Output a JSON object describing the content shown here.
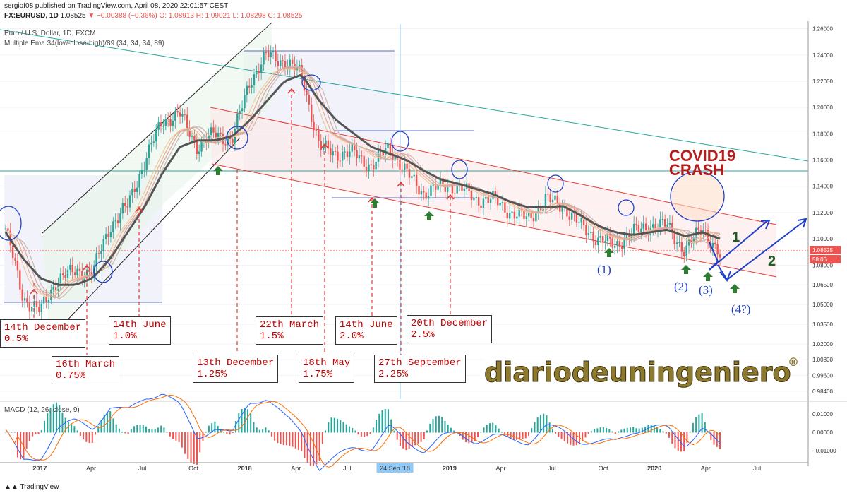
{
  "header": {
    "line1": "sergiof08 published on TradingView.com, April 08, 2020 22:01:57 CEST",
    "line2_symbol": "FX:EURUSD, 1D",
    "line2_last": "1.08525",
    "line2_change": "▼ −0.00388 (−0.36%)",
    "line2_ohlc": "O: 1.08913  H: 1.09021  L: 1.08298  C: 1.08525",
    "title": "Euro / U.S. Dollar, 1D, FXCM",
    "indicator": "Multiple Ema 34(low-close-high)/89 (34, 34, 34, 89)"
  },
  "price_axis": {
    "ticks": [
      "1.26000",
      "1.24000",
      "1.22000",
      "1.20000",
      "1.18000",
      "1.16000",
      "1.14000",
      "1.12000",
      "1.10000",
      "1.08000",
      "1.06500",
      "1.05000",
      "1.03500",
      "1.02000",
      "1.00800",
      "0.99600",
      "0.98400"
    ],
    "last_price": "1.08525",
    "countdown": "58:06"
  },
  "macd": {
    "label": "MACD (12, 26, close, 9)",
    "ticks": [
      "0.01000",
      "0.00000",
      "−0.01000"
    ]
  },
  "time_axis": {
    "labels": [
      "2017",
      "Apr",
      "Jul",
      "Oct",
      "2018",
      "Apr",
      "Jul",
      "24 Sep '18",
      "2019",
      "Apr",
      "Jul",
      "Oct",
      "2020",
      "Apr",
      "Jul"
    ]
  },
  "annotations": {
    "rate_boxes": [
      {
        "date": "14th December",
        "rate": "0.5%"
      },
      {
        "date": "16th March",
        "rate": "0.75%"
      },
      {
        "date": "14th June",
        "rate": "1.0%"
      },
      {
        "date": "13th December",
        "rate": "1.25%"
      },
      {
        "date": "22th March",
        "rate": "1.5%"
      },
      {
        "date": "18th May",
        "rate": "1.75%"
      },
      {
        "date": "14th June",
        "rate": "2.0%"
      },
      {
        "date": "27th September",
        "rate": "2.25%"
      },
      {
        "date": "20th December",
        "rate": "2.5%"
      }
    ],
    "covid_line1": "COVID19",
    "covid_line2": "CRASH",
    "wave_labels": [
      "(1)",
      "(2)",
      "(3)",
      "(4?)"
    ],
    "scenario_labels": [
      "1",
      "2"
    ],
    "watermark": "diariodeuningeniero",
    "watermark_mark": "®"
  },
  "colors": {
    "price_up": "#26a69a",
    "price_down": "#ef5350",
    "ema_slow": "#555555",
    "channel": "#e53935",
    "covid_text": "#b71c1c",
    "arrows": "#1e40c8",
    "green_arrows": "#2e7d32",
    "macd_line": "#2962ff",
    "signal_line": "#ff6d00"
  },
  "footer": {
    "brand": "TradingView"
  },
  "chart_data": {
    "type": "line",
    "title": "Euro / U.S. Dollar, 1D, FXCM",
    "xlabel": "",
    "ylabel": "",
    "x": [
      "2016-11",
      "2016-12",
      "2017-01",
      "2017-02",
      "2017-03",
      "2017-04",
      "2017-05",
      "2017-06",
      "2017-07",
      "2017-08",
      "2017-09",
      "2017-10",
      "2017-11",
      "2017-12",
      "2018-01",
      "2018-02",
      "2018-03",
      "2018-04",
      "2018-05",
      "2018-06",
      "2018-07",
      "2018-08",
      "2018-09",
      "2018-10",
      "2018-11",
      "2018-12",
      "2019-01",
      "2019-02",
      "2019-03",
      "2019-04",
      "2019-05",
      "2019-06",
      "2019-07",
      "2019-08",
      "2019-09",
      "2019-10",
      "2019-11",
      "2019-12",
      "2020-01",
      "2020-02",
      "2020-03",
      "2020-04"
    ],
    "series": [
      {
        "name": "",
        "values": [
          1.108,
          1.055,
          1.045,
          1.07,
          1.075,
          1.075,
          1.11,
          1.125,
          1.16,
          1.19,
          1.195,
          1.17,
          1.18,
          1.175,
          1.22,
          1.24,
          1.235,
          1.225,
          1.17,
          1.165,
          1.165,
          1.155,
          1.17,
          1.15,
          1.135,
          1.14,
          1.14,
          1.13,
          1.13,
          1.12,
          1.115,
          1.13,
          1.125,
          1.11,
          1.1,
          1.095,
          1.105,
          1.11,
          1.11,
          1.09,
          1.11,
          1.08525
        ]
      },
      {
        "name": "",
        "values": [
          1.105,
          1.085,
          1.07,
          1.065,
          1.065,
          1.07,
          1.085,
          1.105,
          1.125,
          1.15,
          1.17,
          1.175,
          1.175,
          1.178,
          1.19,
          1.205,
          1.22,
          1.225,
          1.205,
          1.19,
          1.18,
          1.17,
          1.165,
          1.16,
          1.152,
          1.145,
          1.142,
          1.138,
          1.134,
          1.128,
          1.124,
          1.124,
          1.125,
          1.118,
          1.11,
          1.105,
          1.103,
          1.105,
          1.107,
          1.102,
          1.105,
          1.1
        ]
      }
    ],
    "ylim": [
      0.978,
      1.27
    ],
    "grid": true,
    "bands": [
      {
        "label": "14th December",
        "value": "0.5%"
      },
      {
        "label": "16th March",
        "value": "0.75%"
      },
      {
        "label": "14th June",
        "value": "1.0%"
      },
      {
        "label": "13th December",
        "value": "1.25%"
      },
      {
        "label": "22th March",
        "value": "1.5%"
      },
      {
        "label": "18th May",
        "value": "1.75%"
      },
      {
        "label": "14th June",
        "value": "2.0%"
      },
      {
        "label": "27th September",
        "value": "2.25%"
      },
      {
        "label": "20th December",
        "value": "2.5%"
      }
    ]
  }
}
